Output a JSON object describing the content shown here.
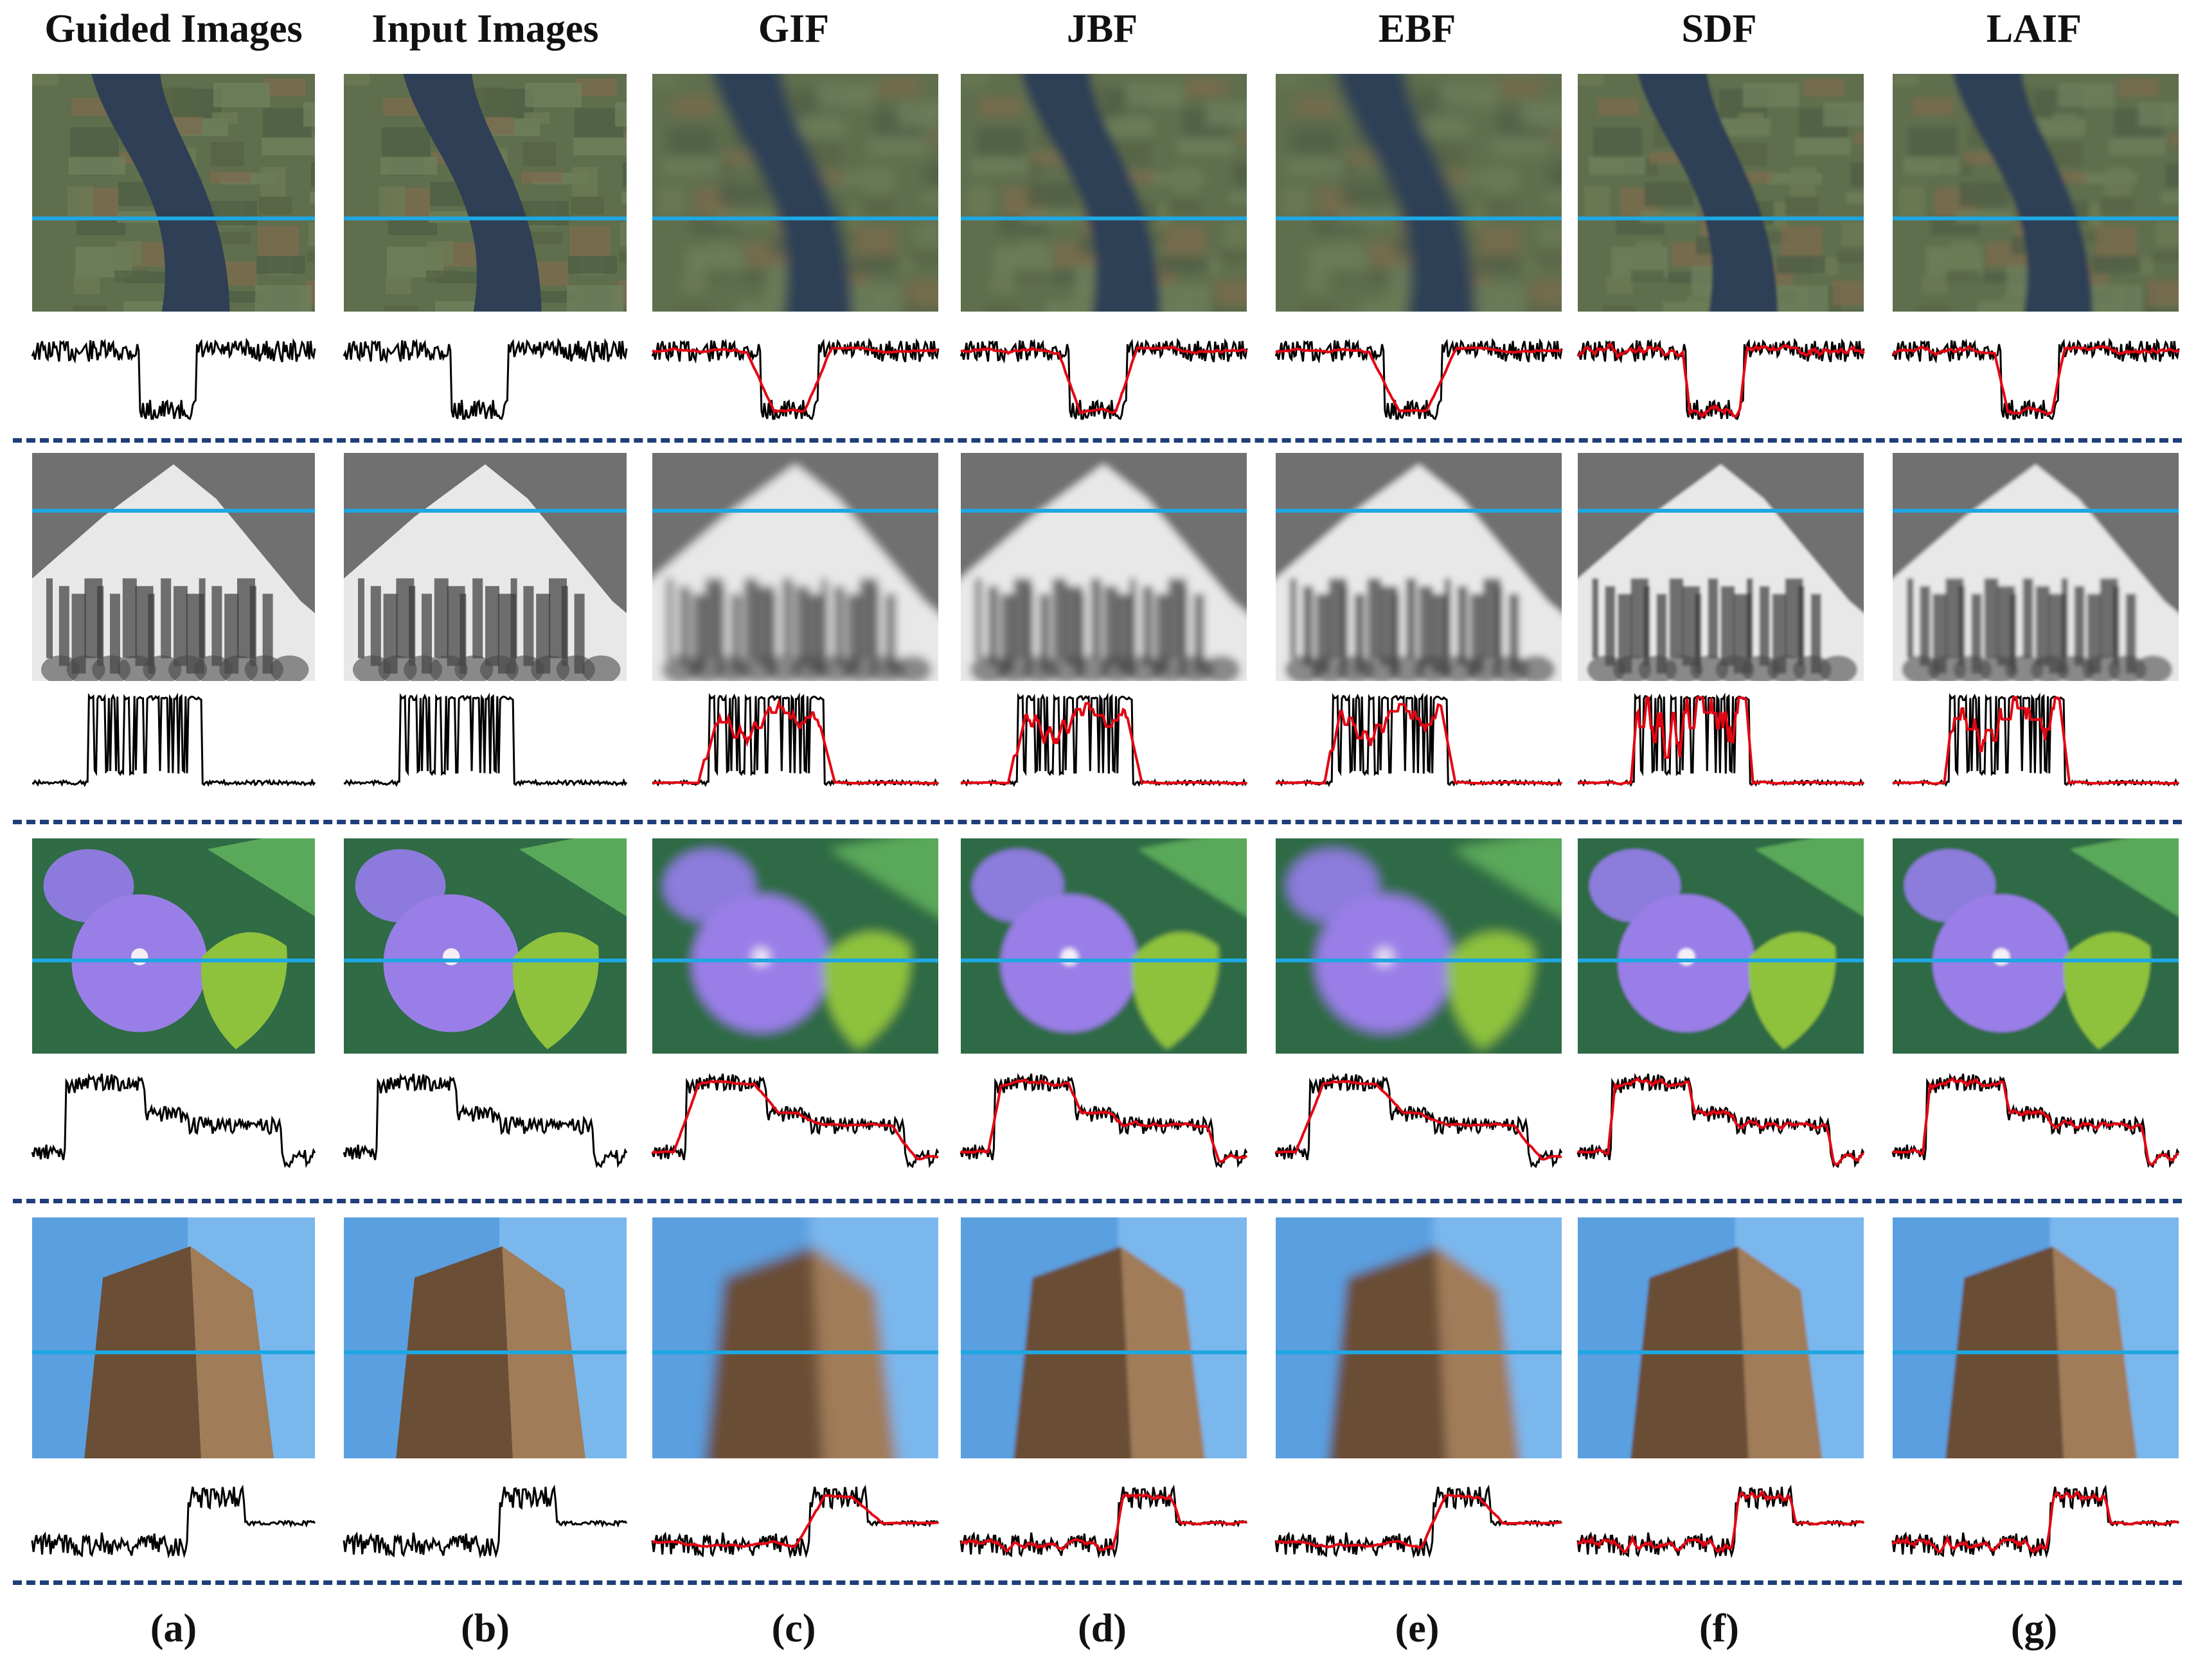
{
  "columns": [
    {
      "title": "Guided Images",
      "label": "(a)"
    },
    {
      "title": "Input Images",
      "label": "(b)"
    },
    {
      "title": "GIF",
      "label": "(c)"
    },
    {
      "title": "JBF",
      "label": "(d)"
    },
    {
      "title": "EBF",
      "label": "(e)"
    },
    {
      "title": "SDF",
      "label": "(f)"
    },
    {
      "title": "LAIF",
      "label": "(g)"
    }
  ],
  "rows": [
    {
      "scene": "satellite-river",
      "blur": [
        0,
        0,
        9,
        7,
        10,
        2,
        4
      ]
    },
    {
      "scene": "snow-mountain",
      "blur": [
        0,
        0,
        7,
        6,
        5,
        2,
        3
      ]
    },
    {
      "scene": "morning-glory-flower",
      "blur": [
        0,
        0,
        8,
        4,
        9,
        2,
        2
      ]
    },
    {
      "scene": "stone-tower",
      "blur": [
        0,
        0,
        10,
        3,
        8,
        2,
        2
      ]
    }
  ],
  "colors": {
    "scanline": "#1ea7e1",
    "input_signal": "#000000",
    "filtered_signal": "#e30613",
    "separator": "#1f3f7a"
  }
}
